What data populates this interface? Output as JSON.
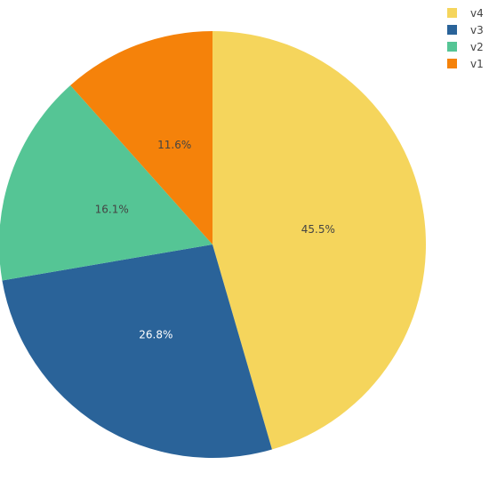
{
  "chart_data": {
    "type": "pie",
    "title": "",
    "categories": [
      "v4",
      "v3",
      "v2",
      "v1"
    ],
    "values": [
      45.5,
      26.8,
      16.1,
      11.6
    ],
    "labels": [
      "45.5%",
      "26.8%",
      "16.1%",
      "11.6%"
    ],
    "colors": [
      "#f5d55c",
      "#2a6399",
      "#55c595",
      "#f5820a"
    ],
    "label_colors": [
      "#444444",
      "#ffffff",
      "#444444",
      "#444444"
    ],
    "legend_position": "top-right",
    "start_angle": "12 o'clock",
    "direction": "clockwise"
  }
}
